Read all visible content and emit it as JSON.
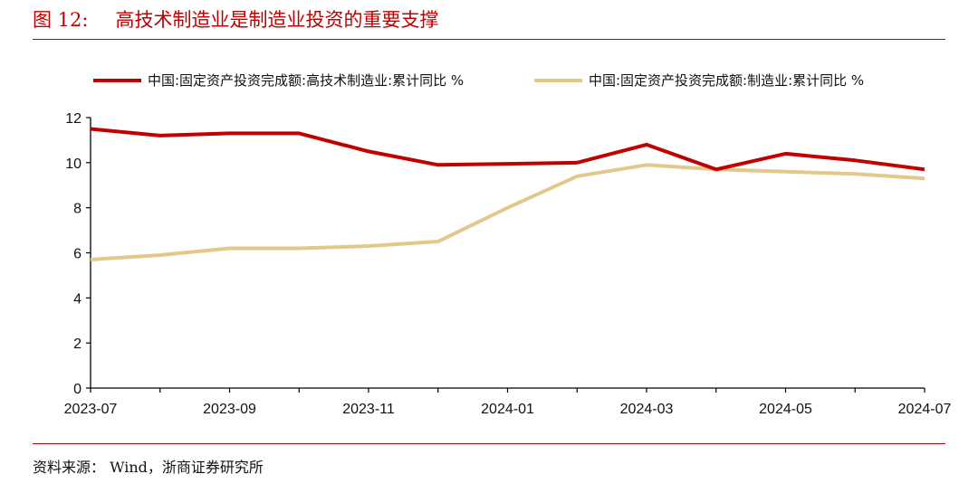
{
  "figure": {
    "number": "图 12:",
    "title": "高技术制造业是制造业投资的重要支撑",
    "source": "资料来源：  Wind，浙商证券研究所"
  },
  "chart_data": {
    "type": "line",
    "x": [
      "2023-07",
      "2023-08",
      "2023-09",
      "2023-10",
      "2023-11",
      "2023-12",
      "2024-01",
      "2024-02",
      "2024-03",
      "2024-04",
      "2024-05",
      "2024-06",
      "2024-07"
    ],
    "x_tick_labels": [
      "2023-07",
      "2023-09",
      "2023-11",
      "2024-01",
      "2024-03",
      "2024-05",
      "2024-07"
    ],
    "y_tick_labels": [
      "0",
      "2",
      "4",
      "6",
      "8",
      "10",
      "12"
    ],
    "ylim": [
      0,
      12
    ],
    "grid": false,
    "legend_position": "top",
    "series": [
      {
        "name": "中国:固定资产投资完成额:高技术制造业:累计同比 %",
        "color": "#c00000",
        "values": [
          11.5,
          11.2,
          11.3,
          11.3,
          10.5,
          9.9,
          9.95,
          10.0,
          10.8,
          9.7,
          10.4,
          10.1,
          9.7
        ]
      },
      {
        "name": "中国:固定资产投资完成额:制造业:累计同比 %",
        "color": "#e3c88c",
        "values": [
          5.7,
          5.9,
          6.2,
          6.2,
          6.3,
          6.5,
          8.0,
          9.4,
          9.9,
          9.7,
          9.6,
          9.5,
          9.3
        ]
      }
    ]
  }
}
